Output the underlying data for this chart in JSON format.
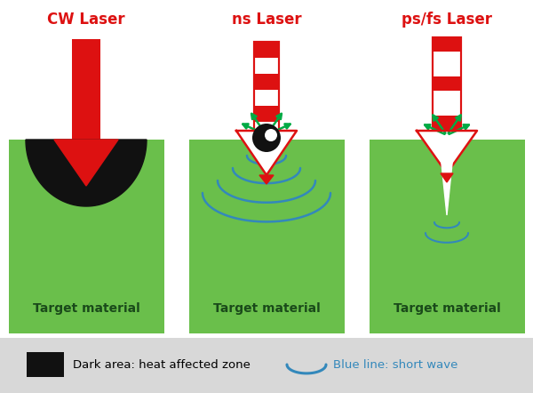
{
  "bg_color": "#ffffff",
  "panel_color": "#6abf4b",
  "legend_bg": "#d8d8d8",
  "red": "#dd1111",
  "green_arrow": "#00aa44",
  "blue_wave": "#3388bb",
  "dark_zone": "#111111",
  "white": "#ffffff",
  "titles": [
    "CW Laser",
    "ns Laser",
    "ps/fs Laser"
  ],
  "title_color": "#dd1111",
  "title_fontsize": 12,
  "label_text": "Target material",
  "label_fontsize": 10,
  "legend_dark_text": "Dark area: heat affected zone",
  "legend_wave_text": "Blue line: short wave",
  "fig_w": 6.0,
  "fig_h": 4.42,
  "dpi": 100
}
